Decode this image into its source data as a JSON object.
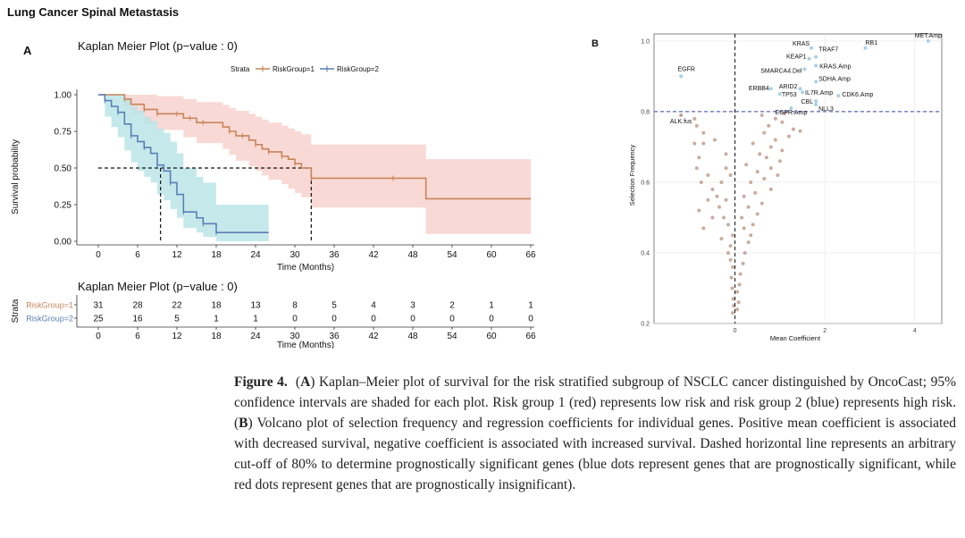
{
  "page_title": "Lung Cancer Spinal Metastasis",
  "panelA": {
    "label": "A",
    "km": {
      "title": "Kaplan Meier Plot (p−value : 0)",
      "legend_title": "Strata",
      "legend_items": [
        "RiskGroup=1",
        "RiskGroup=2"
      ],
      "ylabel": "Survival probability",
      "xlabel": "Time (Months)",
      "y_ticks": [
        "1.00",
        "0.75",
        "0.50",
        "0.25",
        "0.00"
      ],
      "x_ticks": [
        "0",
        "6",
        "12",
        "18",
        "24",
        "30",
        "36",
        "42",
        "48",
        "54",
        "60",
        "66"
      ]
    },
    "risk_table": {
      "title": "Kaplan Meier Plot (p−value : 0)",
      "ylabel": "Strata",
      "xlabel": "Time (Months)",
      "row_labels": [
        "RiskGroup=1",
        "RiskGroup=2"
      ],
      "rows": [
        [
          "31",
          "28",
          "22",
          "18",
          "13",
          "8",
          "5",
          "4",
          "3",
          "2",
          "1",
          "1"
        ],
        [
          "25",
          "16",
          "5",
          "1",
          "1",
          "0",
          "0",
          "0",
          "0",
          "0",
          "0",
          "0"
        ]
      ],
      "x_ticks": [
        "0",
        "6",
        "12",
        "18",
        "24",
        "30",
        "36",
        "42",
        "48",
        "54",
        "60",
        "66"
      ]
    }
  },
  "panelB": {
    "label": "B",
    "xlabel": "Mean Coefficient",
    "ylabel": "Selection Frequency",
    "y_ticks": [
      "1.0",
      "0.8",
      "0.6",
      "0.4",
      "0.2"
    ],
    "x_ticks": [
      "0",
      "2",
      "4"
    ],
    "gene_labels": [
      "MET.Amp",
      "RB1",
      "KRAS",
      "TRAF7",
      "KEAP1",
      "KRAS.Amp",
      "SMARCA4.Del",
      "EGFR",
      "SDHA.Amp",
      "ERBB4",
      "ARID2",
      "IL7R.Amp",
      "CDK6.Amp",
      "TP53",
      "CBL",
      "EGFR.Amp",
      "NLL3",
      "ALK.fus"
    ]
  },
  "caption": {
    "figure_label": "Figure 4.",
    "paren_open": "(",
    "a_label": "A",
    "part1": ") Kaplan–Meier plot of survival for the risk stratified subgroup of NSCLC cancer distinguished by OncoCast; 95% confidence intervals are shaded for each plot. Risk group 1 (red) represents low risk and risk group 2 (blue) represents high risk. (",
    "b_label": "B",
    "part2": ") Volcano plot of selection frequency and regression coefficients for individual genes. Positive mean coefficient is associated with decreased survival, negative coefficient is associated with increased survival. Dashed horizontal line represents an arbitrary cut-off of 80% to determine prognostically significant genes (blue dots represent genes that are prognostically significant, while red dots represent genes that are prognostically insignificant)."
  },
  "colors": {
    "group1": "#c8845a",
    "group1_fill": "#f8cfcb",
    "group2": "#5a7fb5",
    "group2_fill": "#b7e4e6",
    "volcano_dot": "#b89080",
    "volcano_sig": "#9cc8dc",
    "cutoff": "#3344aa"
  },
  "chart_data": [
    {
      "type": "line",
      "title": "Kaplan Meier Plot (p−value : 0)",
      "xlabel": "Time (Months)",
      "ylabel": "Survival probability",
      "xlim": [
        0,
        66
      ],
      "ylim": [
        0,
        1
      ],
      "x_ticks": [
        0,
        6,
        12,
        18,
        24,
        30,
        36,
        42,
        48,
        54,
        60,
        66
      ],
      "median_survival": {
        "RiskGroup=1": 32.5,
        "RiskGroup=2": 9.5
      },
      "series": [
        {
          "name": "RiskGroup=1",
          "x": [
            0,
            4,
            5,
            7,
            8,
            9,
            10,
            12,
            13,
            14,
            15,
            16,
            19,
            20,
            21,
            22,
            23,
            24,
            25,
            26,
            27,
            28,
            29,
            30,
            31,
            32.5,
            35,
            45,
            50,
            66
          ],
          "y": [
            1.0,
            0.97,
            0.935,
            0.9,
            0.9,
            0.87,
            0.87,
            0.87,
            0.84,
            0.84,
            0.81,
            0.81,
            0.78,
            0.75,
            0.72,
            0.72,
            0.69,
            0.66,
            0.63,
            0.61,
            0.61,
            0.58,
            0.56,
            0.53,
            0.5,
            0.43,
            0.43,
            0.43,
            0.29,
            0.29
          ],
          "ci_upper": [
            1.0,
            1.0,
            1.0,
            1.0,
            1.0,
            0.99,
            0.99,
            0.99,
            0.97,
            0.97,
            0.95,
            0.95,
            0.93,
            0.91,
            0.89,
            0.89,
            0.87,
            0.85,
            0.83,
            0.81,
            0.81,
            0.79,
            0.77,
            0.75,
            0.73,
            0.66,
            0.66,
            0.66,
            0.56,
            0.56
          ],
          "ci_lower": [
            1.0,
            0.92,
            0.87,
            0.8,
            0.8,
            0.76,
            0.76,
            0.76,
            0.71,
            0.71,
            0.67,
            0.67,
            0.63,
            0.59,
            0.55,
            0.55,
            0.51,
            0.48,
            0.45,
            0.42,
            0.42,
            0.39,
            0.36,
            0.33,
            0.3,
            0.23,
            0.23,
            0.23,
            0.05,
            0.05
          ]
        },
        {
          "name": "RiskGroup=2",
          "x": [
            0,
            1,
            2,
            3,
            4,
            5,
            6,
            7,
            8,
            9,
            10,
            11,
            12,
            13,
            15,
            16,
            17,
            18,
            26
          ],
          "y": [
            1.0,
            0.96,
            0.92,
            0.88,
            0.8,
            0.72,
            0.68,
            0.64,
            0.6,
            0.52,
            0.48,
            0.4,
            0.32,
            0.2,
            0.16,
            0.12,
            0.12,
            0.06,
            0.06
          ],
          "ci_upper": [
            1.0,
            1.0,
            1.0,
            1.0,
            0.97,
            0.92,
            0.89,
            0.85,
            0.82,
            0.77,
            0.74,
            0.68,
            0.6,
            0.5,
            0.44,
            0.4,
            0.4,
            0.25,
            0.25
          ],
          "ci_lower": [
            1.0,
            0.85,
            0.78,
            0.71,
            0.62,
            0.54,
            0.48,
            0.44,
            0.4,
            0.32,
            0.28,
            0.22,
            0.16,
            0.09,
            0.06,
            0.03,
            0.03,
            0.0,
            0.0
          ]
        }
      ]
    },
    {
      "type": "table",
      "title": "Kaplan Meier Plot (p−value : 0)",
      "columns": [
        0,
        6,
        12,
        18,
        24,
        30,
        36,
        42,
        48,
        54,
        60,
        66
      ],
      "rows": [
        {
          "name": "RiskGroup=1",
          "values": [
            31,
            28,
            22,
            18,
            13,
            8,
            5,
            4,
            3,
            2,
            1,
            1
          ]
        },
        {
          "name": "RiskGroup=2",
          "values": [
            25,
            16,
            5,
            1,
            1,
            0,
            0,
            0,
            0,
            0,
            0,
            0
          ]
        }
      ]
    },
    {
      "type": "scatter",
      "xlabel": "Mean Coefficient",
      "ylabel": "Selection Frequency",
      "xlim": [
        -1.8,
        4.6
      ],
      "ylim": [
        0.2,
        1.02
      ],
      "hline": 0.8,
      "vline": 0,
      "labeled_points": [
        {
          "label": "MET.Amp",
          "x": 4.3,
          "y": 1.0
        },
        {
          "label": "RB1",
          "x": 2.9,
          "y": 0.98
        },
        {
          "label": "KRAS",
          "x": 1.7,
          "y": 0.98
        },
        {
          "label": "TRAF7",
          "x": 1.8,
          "y": 0.955
        },
        {
          "label": "KEAP1",
          "x": 1.65,
          "y": 0.95
        },
        {
          "label": "KRAS.Amp",
          "x": 1.8,
          "y": 0.93
        },
        {
          "label": "SMARCA4.Del",
          "x": 1.55,
          "y": 0.92
        },
        {
          "label": "EGFR",
          "x": -1.2,
          "y": 0.9
        },
        {
          "label": "SDHA.Amp",
          "x": 1.8,
          "y": 0.885
        },
        {
          "label": "ERBB4",
          "x": 0.8,
          "y": 0.865
        },
        {
          "label": "ARID2",
          "x": 1.45,
          "y": 0.865
        },
        {
          "label": "IL7R.Amp",
          "x": 1.5,
          "y": 0.855
        },
        {
          "label": "CDK6.Amp",
          "x": 2.3,
          "y": 0.845
        },
        {
          "label": "TP53",
          "x": 1.0,
          "y": 0.85
        },
        {
          "label": "CBL",
          "x": 1.8,
          "y": 0.83
        },
        {
          "label": "EGFR.Amp",
          "x": 1.25,
          "y": 0.81
        },
        {
          "label": "NLL3",
          "x": 1.8,
          "y": 0.82
        },
        {
          "label": "ALK.fus",
          "x": -1.2,
          "y": 0.79
        }
      ],
      "points": [
        [
          -0.9,
          0.78
        ],
        [
          -0.85,
          0.76
        ],
        [
          -0.7,
          0.74
        ],
        [
          -0.45,
          0.72
        ],
        [
          -0.7,
          0.71
        ],
        [
          -0.9,
          0.71
        ],
        [
          -0.2,
          0.68
        ],
        [
          -0.8,
          0.67
        ],
        [
          -0.85,
          0.64
        ],
        [
          -0.6,
          0.62
        ],
        [
          -0.2,
          0.64
        ],
        [
          -0.1,
          0.62
        ],
        [
          -0.3,
          0.6
        ],
        [
          -0.75,
          0.6
        ],
        [
          -0.5,
          0.58
        ],
        [
          -0.4,
          0.56
        ],
        [
          -0.2,
          0.55
        ],
        [
          -0.6,
          0.55
        ],
        [
          -0.35,
          0.53
        ],
        [
          -0.8,
          0.52
        ],
        [
          -0.5,
          0.5
        ],
        [
          -0.25,
          0.5
        ],
        [
          -0.15,
          0.48
        ],
        [
          -0.7,
          0.47
        ],
        [
          -0.05,
          0.45
        ],
        [
          -0.3,
          0.44
        ],
        [
          -0.1,
          0.42
        ],
        [
          -0.15,
          0.4
        ],
        [
          -0.1,
          0.38
        ],
        [
          -0.05,
          0.36
        ],
        [
          -0.08,
          0.33
        ],
        [
          -0.06,
          0.3
        ],
        [
          -0.04,
          0.27
        ],
        [
          -0.03,
          0.25
        ],
        [
          -0.05,
          0.23
        ],
        [
          0.05,
          0.24
        ],
        [
          0.08,
          0.26
        ],
        [
          0.05,
          0.29
        ],
        [
          0.1,
          0.31
        ],
        [
          0.12,
          0.34
        ],
        [
          0.18,
          0.37
        ],
        [
          0.22,
          0.4
        ],
        [
          0.3,
          0.43
        ],
        [
          0.35,
          0.45
        ],
        [
          0.2,
          0.47
        ],
        [
          0.4,
          0.48
        ],
        [
          0.15,
          0.5
        ],
        [
          0.5,
          0.51
        ],
        [
          0.3,
          0.53
        ],
        [
          0.6,
          0.54
        ],
        [
          0.2,
          0.56
        ],
        [
          0.45,
          0.57
        ],
        [
          0.8,
          0.58
        ],
        [
          0.35,
          0.6
        ],
        [
          0.65,
          0.61
        ],
        [
          0.95,
          0.62
        ],
        [
          0.5,
          0.63
        ],
        [
          0.8,
          0.64
        ],
        [
          0.25,
          0.65
        ],
        [
          1.0,
          0.66
        ],
        [
          0.7,
          0.67
        ],
        [
          0.55,
          0.68
        ],
        [
          1.05,
          0.69
        ],
        [
          0.8,
          0.7
        ],
        [
          0.4,
          0.71
        ],
        [
          0.9,
          0.72
        ],
        [
          1.2,
          0.73
        ],
        [
          0.65,
          0.74
        ],
        [
          1.3,
          0.75
        ],
        [
          0.75,
          0.76
        ],
        [
          1.05,
          0.77
        ],
        [
          0.9,
          0.78
        ],
        [
          1.45,
          0.745
        ],
        [
          0.6,
          0.79
        ],
        [
          1.1,
          0.795
        ]
      ]
    }
  ]
}
